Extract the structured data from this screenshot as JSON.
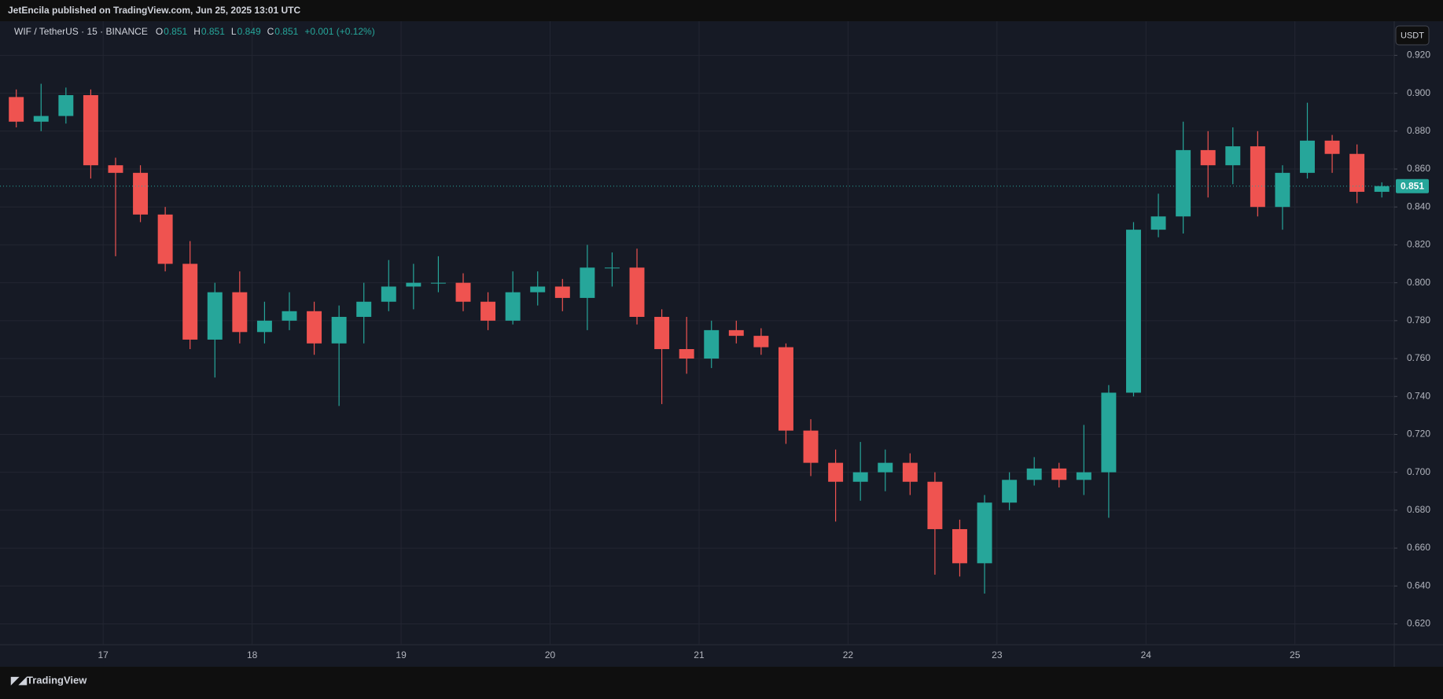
{
  "published": "JetEncila published on TradingView.com, Jun 25, 2025 13:01 UTC",
  "footer": "TradingView",
  "chart_data": {
    "type": "candlestick",
    "symbol": "WIF / TetherUS · 15 · BINANCE",
    "ohlc": [
      {
        "label": "O",
        "value": 0.851
      },
      {
        "label": "H",
        "value": 0.851
      },
      {
        "label": "L",
        "value": 0.849
      },
      {
        "label": "C",
        "value": 0.851
      }
    ],
    "change": "+0.001 (+0.12%)",
    "currency": "USDT",
    "last_price": 0.851,
    "categories": [
      null,
      null,
      null,
      null,
      "17",
      null,
      null,
      null,
      null,
      null,
      "18",
      null,
      null,
      null,
      null,
      null,
      "19",
      null,
      null,
      null,
      null,
      null,
      "20",
      null,
      null,
      null,
      null,
      null,
      "21",
      null,
      null,
      null,
      null,
      null,
      "22",
      null,
      null,
      null,
      null,
      null,
      "23",
      null,
      null,
      null,
      null,
      null,
      "24",
      null,
      null,
      null,
      null,
      null,
      "25",
      null,
      null,
      null
    ],
    "open": [
      0.898,
      0.885,
      0.888,
      0.899,
      0.862,
      0.858,
      0.836,
      0.81,
      0.77,
      0.795,
      0.774,
      0.78,
      0.785,
      0.768,
      0.782,
      0.79,
      0.798,
      0.8,
      0.8,
      0.79,
      0.78,
      0.795,
      0.798,
      0.792,
      0.808,
      0.808,
      0.782,
      0.765,
      0.76,
      0.775,
      0.772,
      0.766,
      0.722,
      0.705,
      0.695,
      0.7,
      0.705,
      0.695,
      0.67,
      0.652,
      0.684,
      0.696,
      0.702,
      0.696,
      0.7,
      0.742,
      0.828,
      0.835,
      0.87,
      0.862,
      0.872,
      0.84,
      0.858,
      0.875,
      0.868,
      0.848
    ],
    "high": [
      0.902,
      0.905,
      0.903,
      0.902,
      0.866,
      0.862,
      0.84,
      0.822,
      0.8,
      0.806,
      0.79,
      0.795,
      0.79,
      0.788,
      0.8,
      0.812,
      0.81,
      0.814,
      0.805,
      0.795,
      0.806,
      0.806,
      0.802,
      0.82,
      0.816,
      0.818,
      0.786,
      0.782,
      0.78,
      0.78,
      0.776,
      0.768,
      0.728,
      0.712,
      0.716,
      0.712,
      0.71,
      0.7,
      0.675,
      0.688,
      0.7,
      0.708,
      0.705,
      0.725,
      0.746,
      0.832,
      0.847,
      0.885,
      0.88,
      0.882,
      0.88,
      0.862,
      0.895,
      0.878,
      0.873,
      0.853
    ],
    "low": [
      0.882,
      0.88,
      0.884,
      0.855,
      0.814,
      0.832,
      0.806,
      0.765,
      0.75,
      0.768,
      0.768,
      0.775,
      0.762,
      0.735,
      0.768,
      0.785,
      0.786,
      0.795,
      0.785,
      0.775,
      0.778,
      0.788,
      0.785,
      0.775,
      0.798,
      0.778,
      0.736,
      0.752,
      0.755,
      0.768,
      0.762,
      0.715,
      0.698,
      0.674,
      0.685,
      0.69,
      0.688,
      0.646,
      0.645,
      0.636,
      0.68,
      0.693,
      0.692,
      0.688,
      0.676,
      0.74,
      0.824,
      0.826,
      0.845,
      0.852,
      0.835,
      0.828,
      0.855,
      0.858,
      0.842,
      0.845
    ],
    "close": [
      0.885,
      0.888,
      0.899,
      0.862,
      0.858,
      0.836,
      0.81,
      0.77,
      0.795,
      0.774,
      0.78,
      0.785,
      0.768,
      0.782,
      0.79,
      0.798,
      0.8,
      0.8,
      0.79,
      0.78,
      0.795,
      0.798,
      0.792,
      0.808,
      0.808,
      0.782,
      0.765,
      0.76,
      0.775,
      0.772,
      0.766,
      0.722,
      0.705,
      0.695,
      0.7,
      0.705,
      0.695,
      0.67,
      0.652,
      0.684,
      0.696,
      0.702,
      0.696,
      0.7,
      0.742,
      0.828,
      0.835,
      0.87,
      0.862,
      0.872,
      0.84,
      0.858,
      0.875,
      0.868,
      0.848,
      0.851
    ],
    "up_color": "#26a69a",
    "down_color": "#ef5350",
    "ylim": [
      0.609,
      0.938
    ],
    "yticks": [
      {
        "value": 0.62,
        "label": "0.620"
      },
      {
        "value": 0.64,
        "label": "0.640"
      },
      {
        "value": 0.66,
        "label": "0.660"
      },
      {
        "value": 0.68,
        "label": "0.680"
      },
      {
        "value": 0.7,
        "label": "0.700"
      },
      {
        "value": 0.72,
        "label": "0.720"
      },
      {
        "value": 0.74,
        "label": "0.740"
      },
      {
        "value": 0.76,
        "label": "0.760"
      },
      {
        "value": 0.78,
        "label": "0.780"
      },
      {
        "value": 0.8,
        "label": "0.800"
      },
      {
        "value": 0.82,
        "label": "0.820"
      },
      {
        "value": 0.84,
        "label": "0.840"
      },
      {
        "value": 0.86,
        "label": "0.860"
      },
      {
        "value": 0.88,
        "label": "0.880"
      },
      {
        "value": 0.9,
        "label": "0.900"
      },
      {
        "value": 0.92,
        "label": "0.920"
      }
    ],
    "grid": true
  }
}
